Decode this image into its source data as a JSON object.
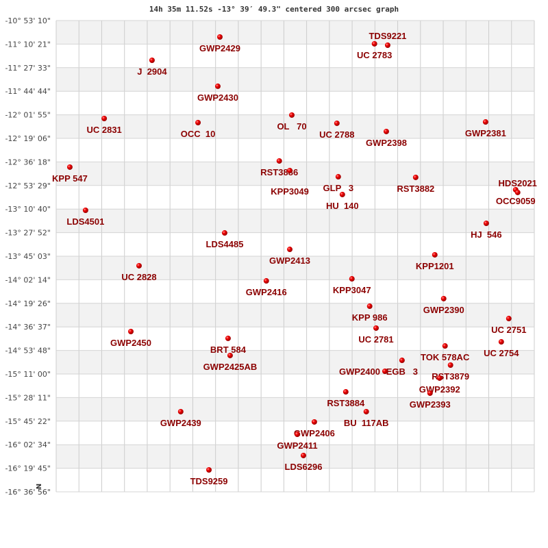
{
  "chart_data": {
    "type": "scatter",
    "title": "14h 35m 11.52s -13° 39′ 49.3\" centered 300 arcsec graph",
    "xlim": [
      0,
      21
    ],
    "ylim": [
      -16.6156,
      -10.8861
    ],
    "grid": true,
    "north_marker": "N",
    "marker_color": "#dd0000",
    "label_color": "#8b0000",
    "ytick_labels": [
      "-10° 53' 10\"",
      "-11° 10' 21\"",
      "-11° 27' 33\"",
      "-11° 44' 44\"",
      "-12° 01' 55\"",
      "-12° 19' 06\"",
      "-12° 36' 18\"",
      "-12° 53' 29\"",
      "-13° 10' 40\"",
      "-13° 27' 52\"",
      "-13° 45' 03\"",
      "-14° 02' 14\"",
      "-14° 19' 26\"",
      "-14° 36' 37\"",
      "-14° 53' 48\"",
      "-15° 11' 00\"",
      "-15° 28' 11\"",
      "-15° 45' 22\"",
      "-16° 02' 34\"",
      "-16° 19' 45\"",
      "-16° 36' 56\""
    ],
    "points": [
      {
        "name": "GWP2429",
        "x": 7.19,
        "dec": -11.086
      },
      {
        "name": "J  2904",
        "x": 4.21,
        "dec": -11.369
      },
      {
        "name": "GWP2430",
        "x": 7.1,
        "dec": -11.685
      },
      {
        "name": "UC 2831",
        "x": 2.11,
        "dec": -12.077
      },
      {
        "name": "OCC  10",
        "x": 6.23,
        "dec": -12.127
      },
      {
        "name": "OL   70",
        "x": 10.35,
        "dec": -12.035
      },
      {
        "name": "UC 2788",
        "x": 12.33,
        "dec": -12.135
      },
      {
        "name": "GWP2398",
        "x": 14.5,
        "dec": -12.235
      },
      {
        "name": "GWP2381",
        "x": 18.86,
        "dec": -12.119
      },
      {
        "name": "UC 2783",
        "x": 13.98,
        "dec": -11.169
      },
      {
        "name": "TDS9221",
        "x": 14.56,
        "dec": -11.186
      },
      {
        "name": "KPP 547",
        "x": 0.6,
        "dec": -12.668
      },
      {
        "name": "RST3886",
        "x": 9.8,
        "dec": -12.593
      },
      {
        "name": "KPP3049",
        "x": 10.26,
        "dec": -12.71
      },
      {
        "name": "GLP   3",
        "x": 12.39,
        "dec": -12.785
      },
      {
        "name": "HU  140",
        "x": 12.57,
        "dec": -13.001
      },
      {
        "name": "RST3882",
        "x": 15.79,
        "dec": -12.793
      },
      {
        "name": "OCC9059",
        "x": 20.18,
        "dec": -12.943
      },
      {
        "name": "HDS2021",
        "x": 20.27,
        "dec": -12.976
      },
      {
        "name": "LDS4501",
        "x": 1.29,
        "dec": -13.193
      },
      {
        "name": "HJ  546",
        "x": 18.89,
        "dec": -13.351
      },
      {
        "name": "LDS4485",
        "x": 7.4,
        "dec": -13.468
      },
      {
        "name": "GWP2413",
        "x": 10.26,
        "dec": -13.668
      },
      {
        "name": "KPP1201",
        "x": 16.63,
        "dec": -13.734
      },
      {
        "name": "UC 2828",
        "x": 3.64,
        "dec": -13.867
      },
      {
        "name": "GWP2416",
        "x": 9.23,
        "dec": -14.051
      },
      {
        "name": "KPP3047",
        "x": 12.99,
        "dec": -14.026
      },
      {
        "name": "GWP2390",
        "x": 17.02,
        "dec": -14.267
      },
      {
        "name": "KPP 986",
        "x": 13.77,
        "dec": -14.359
      },
      {
        "name": "UC 2751",
        "x": 19.88,
        "dec": -14.509
      },
      {
        "name": "UC 2781",
        "x": 14.05,
        "dec": -14.625
      },
      {
        "name": "GWP2450",
        "x": 3.28,
        "dec": -14.667
      },
      {
        "name": "BRT 584",
        "x": 7.55,
        "dec": -14.75
      },
      {
        "name": "UC 2754",
        "x": 19.55,
        "dec": -14.792
      },
      {
        "name": "TOK 578AC",
        "x": 17.08,
        "dec": -14.842
      },
      {
        "name": "GWP2425AB",
        "x": 7.64,
        "dec": -14.958
      },
      {
        "name": "EGB   3",
        "x": 15.19,
        "dec": -15.017
      },
      {
        "name": "RST3879",
        "x": 17.32,
        "dec": -15.075
      },
      {
        "name": "GWP2400",
        "x": 14.44,
        "dec": -15.15
      },
      {
        "name": "GWP2392",
        "x": 16.84,
        "dec": -15.233
      },
      {
        "name": "GWP2393",
        "x": 16.42,
        "dec": -15.416
      },
      {
        "name": "RST3884",
        "x": 12.72,
        "dec": -15.4
      },
      {
        "name": "BU  117AB",
        "x": 13.62,
        "dec": -15.641
      },
      {
        "name": "GWP2439",
        "x": 5.47,
        "dec": -15.641
      },
      {
        "name": "GWP2406",
        "x": 11.34,
        "dec": -15.766
      },
      {
        "name": "GWP2411",
        "x": 10.59,
        "dec": -15.916
      },
      {
        "name": "LDS6296",
        "x": 10.86,
        "dec": -16.174
      },
      {
        "name": "TDS9259",
        "x": 6.71,
        "dec": -16.349
      }
    ]
  }
}
